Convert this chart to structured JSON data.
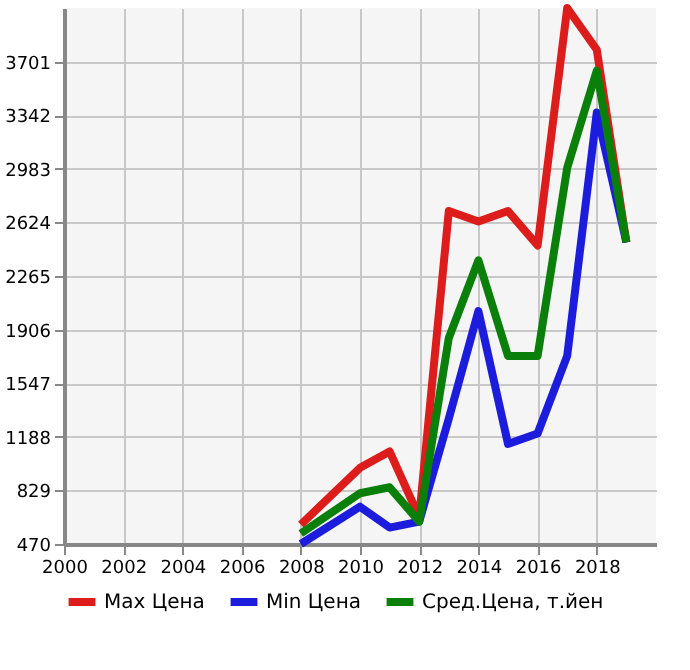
{
  "chart_data": {
    "type": "line",
    "x": [
      2008,
      2010,
      2011,
      2012,
      2013,
      2014,
      2015,
      2016,
      2017,
      2018,
      2019
    ],
    "series": [
      {
        "name": "Max Цена",
        "color": "#dd1c1c",
        "values": [
          600,
          980,
          1090,
          650,
          2700,
          2630,
          2700,
          2470,
          4060,
          3780,
          2490
        ]
      },
      {
        "name": "Min Цена",
        "color": "#1c1cdd",
        "values": [
          470,
          720,
          580,
          620,
          1310,
          2030,
          1140,
          1210,
          1730,
          3360,
          2490
        ]
      },
      {
        "name": "Сред.Цена, т.йен",
        "color": "#0a800a",
        "values": [
          540,
          810,
          850,
          620,
          1850,
          2370,
          1730,
          1730,
          2990,
          3640,
          2490
        ]
      }
    ],
    "xlim": [
      2000,
      2020
    ],
    "xticks": [
      2000,
      2002,
      2004,
      2006,
      2008,
      2010,
      2012,
      2014,
      2016,
      2018
    ],
    "ylim": [
      470,
      4060
    ],
    "yticks": [
      470,
      829,
      1188,
      1547,
      1906,
      2265,
      2624,
      2983,
      3342,
      3701
    ],
    "grid": true,
    "legend": "bottom",
    "marker": "none",
    "line_style": "solid"
  }
}
